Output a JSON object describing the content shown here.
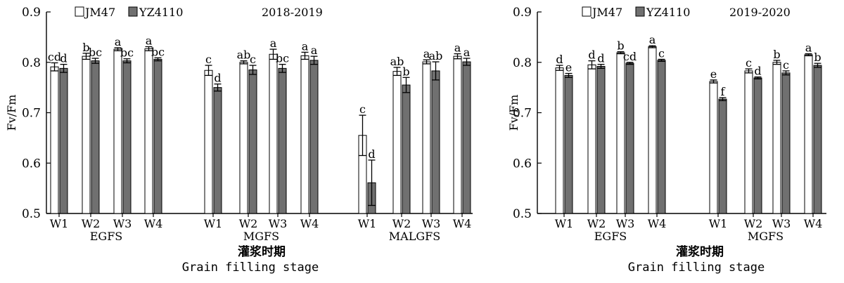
{
  "chart_data": [
    {
      "type": "bar",
      "season": "2018-2019",
      "ylabel": "Fv/Fm",
      "xlabel_cn": "灌浆时期",
      "xlabel_en": "Grain filling stage",
      "ylim": [
        0.5,
        0.9
      ],
      "yticks": [
        "0.5",
        "0.6",
        "0.7",
        "0.8",
        "0.9"
      ],
      "colors": {
        "JM47": "#ffffff",
        "YZ4110": "#707070"
      },
      "series_names": [
        "JM47",
        "YZ4110"
      ],
      "groups": [
        {
          "stage": "EGFS",
          "categories": [
            "W1",
            "W2",
            "W3",
            "W4"
          ],
          "series": [
            {
              "name": "JM47",
              "values": [
                0.791,
                0.812,
                0.826,
                0.827
              ],
              "errors": [
                0.008,
                0.006,
                0.003,
                0.004
              ],
              "letters": [
                "cd",
                "b",
                "a",
                "a"
              ]
            },
            {
              "name": "YZ4110",
              "values": [
                0.788,
                0.803,
                0.803,
                0.806
              ],
              "errors": [
                0.008,
                0.005,
                0.004,
                0.003
              ],
              "letters": [
                "d",
                "bc",
                "bc",
                "bc"
              ]
            }
          ]
        },
        {
          "stage": "MGFS",
          "categories": [
            "W1",
            "W2",
            "W3",
            "W4"
          ],
          "series": [
            {
              "name": "JM47",
              "values": [
                0.784,
                0.8,
                0.816,
                0.813
              ],
              "errors": [
                0.01,
                0.003,
                0.01,
                0.007
              ],
              "letters": [
                "c",
                "ab",
                "a",
                "a"
              ]
            },
            {
              "name": "YZ4110",
              "values": [
                0.75,
                0.785,
                0.788,
                0.804
              ],
              "errors": [
                0.007,
                0.009,
                0.008,
                0.008
              ],
              "letters": [
                "d",
                "c",
                "bc",
                "a"
              ]
            }
          ]
        },
        {
          "stage": "MALGFS",
          "categories": [
            "W1",
            "W2",
            "W3",
            "W4"
          ],
          "series": [
            {
              "name": "JM47",
              "values": [
                0.655,
                0.782,
                0.801,
                0.812
              ],
              "errors": [
                0.04,
                0.008,
                0.004,
                0.005
              ],
              "letters": [
                "c",
                "ab",
                "a",
                "a"
              ]
            },
            {
              "name": "YZ4110",
              "values": [
                0.561,
                0.755,
                0.783,
                0.801
              ],
              "errors": [
                0.045,
                0.015,
                0.018,
                0.007
              ],
              "letters": [
                "d",
                "b",
                "ab",
                "a"
              ]
            }
          ]
        }
      ]
    },
    {
      "type": "bar",
      "season": "2019-2020",
      "ylabel": "Fv/Fm",
      "xlabel_cn": "灌浆时期",
      "xlabel_en": "Grain filling stage",
      "ylim": [
        0.5,
        0.9
      ],
      "yticks": [
        "0.5",
        "0.6",
        "0.7",
        "0.8",
        "0.9"
      ],
      "colors": {
        "JM47": "#ffffff",
        "YZ4110": "#707070"
      },
      "series_names": [
        "JM47",
        "YZ4110"
      ],
      "groups": [
        {
          "stage": "EGFS",
          "categories": [
            "W1",
            "W2",
            "W3",
            "W4"
          ],
          "series": [
            {
              "name": "JM47",
              "values": [
                0.789,
                0.795,
                0.819,
                0.831
              ],
              "errors": [
                0.005,
                0.008,
                0.002,
                0.002
              ],
              "letters": [
                "d",
                "d",
                "b",
                "a"
              ]
            },
            {
              "name": "YZ4110",
              "values": [
                0.774,
                0.792,
                0.798,
                0.804
              ],
              "errors": [
                0.004,
                0.004,
                0.002,
                0.002
              ],
              "letters": [
                "e",
                "d",
                "cd",
                "c"
              ]
            }
          ]
        },
        {
          "stage": "MGFS",
          "categories": [
            "W1",
            "W2",
            "W3",
            "W4"
          ],
          "series": [
            {
              "name": "JM47",
              "values": [
                0.762,
                0.783,
                0.8,
                0.815
              ],
              "errors": [
                0.003,
                0.004,
                0.004,
                0.002
              ],
              "letters": [
                "e",
                "c",
                "b",
                "a"
              ]
            },
            {
              "name": "YZ4110",
              "values": [
                0.727,
                0.769,
                0.779,
                0.794
              ],
              "errors": [
                0.003,
                0.002,
                0.004,
                0.004
              ],
              "letters": [
                "f",
                "d",
                "c",
                "b"
              ]
            }
          ]
        }
      ]
    }
  ]
}
